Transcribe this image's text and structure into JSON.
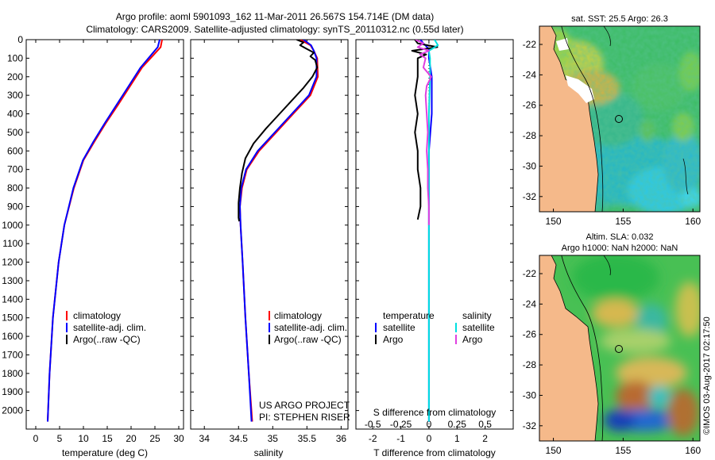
{
  "title": {
    "line1": "Argo profile: aoml 5901093_162 11-Mar-2011 26.567S 154.714E (DM data)",
    "line2": "Climatology: CARS2009. Satellite-adjusted climatology: synTS_20110312.nc (0.55d later)"
  },
  "colors": {
    "climatology": "#ff0000",
    "satellite": "#0000ff",
    "argo": "#000000",
    "argo_sal": "#e040e0",
    "sat_sal": "#00e0e0",
    "land": "#f5b98a"
  },
  "chart_data": [
    {
      "type": "line",
      "panel": "temperature",
      "xlabel": "temperature (deg C)",
      "xlim": [
        -2,
        31
      ],
      "ylim": [
        2100,
        0
      ],
      "xticks": [
        0,
        5,
        10,
        15,
        20,
        25,
        30
      ],
      "xtick_labels": [
        "0",
        "5",
        "10",
        "15",
        "20",
        "25",
        "30"
      ],
      "yticks": [
        0,
        100,
        200,
        300,
        400,
        500,
        600,
        700,
        800,
        900,
        1000,
        1100,
        1200,
        1300,
        1400,
        1500,
        1600,
        1700,
        1800,
        1900,
        2000
      ],
      "ytick_labels": [
        "0",
        "100",
        "200",
        "300",
        "400",
        "500",
        "600",
        "700",
        "800",
        "900",
        "1000",
        "1100",
        "1200",
        "1300",
        "1400",
        "1500",
        "1600",
        "1700",
        "1800",
        "1900",
        "2000"
      ],
      "legend": {
        "position": "center-left",
        "entries": [
          "climatology",
          "satellite-adj. clim.",
          "Argo(..raw -QC)"
        ]
      },
      "series": [
        {
          "name": "climatology",
          "color": "#ff0000",
          "depth": [
            0,
            40,
            80,
            150,
            250,
            350,
            450,
            550,
            650,
            800,
            1000,
            1200,
            1500,
            1800,
            2060
          ],
          "values": [
            26.5,
            26.2,
            24.8,
            22.3,
            19.8,
            17.3,
            14.7,
            12.3,
            10.0,
            8.0,
            6.0,
            4.8,
            3.6,
            2.9,
            2.5
          ]
        },
        {
          "name": "satellite-adj. clim.",
          "color": "#0000ff",
          "depth": [
            0,
            40,
            80,
            150,
            250,
            350,
            450,
            550,
            650,
            800,
            1000,
            1200,
            1500,
            1800,
            2060
          ],
          "values": [
            26.0,
            25.6,
            24.3,
            22.0,
            19.5,
            17.0,
            14.5,
            12.1,
            9.9,
            7.9,
            6.0,
            4.8,
            3.6,
            2.9,
            2.5
          ]
        }
      ]
    },
    {
      "type": "line",
      "panel": "salinity",
      "xlabel": "salinity",
      "xlim": [
        33.8,
        36.1
      ],
      "ylim": [
        2100,
        0
      ],
      "xticks": [
        34,
        34.5,
        35,
        35.5,
        36
      ],
      "xtick_labels": [
        "34",
        "34.5",
        "35",
        "35.5",
        "36"
      ],
      "legend": {
        "position": "center-right",
        "entries": [
          "climatology",
          "satellite-adj. clim.",
          "Argo(..raw -QC)"
        ]
      },
      "annotations": [
        "US ARGO PROJECT",
        "PI: STEPHEN RISER"
      ],
      "series": [
        {
          "name": "climatology",
          "color": "#ff0000",
          "depth": [
            0,
            30,
            60,
            100,
            200,
            300,
            400,
            500,
            600,
            700,
            800,
            900,
            1000,
            1200,
            1500,
            1800,
            2060
          ],
          "values": [
            35.4,
            35.55,
            35.6,
            35.65,
            35.66,
            35.55,
            35.3,
            35.05,
            34.8,
            34.62,
            34.55,
            34.52,
            34.53,
            34.56,
            34.6,
            34.65,
            34.7
          ]
        },
        {
          "name": "satellite-adj. clim.",
          "color": "#0000ff",
          "depth": [
            0,
            30,
            60,
            100,
            200,
            300,
            400,
            500,
            600,
            700,
            800,
            900,
            1000,
            1200,
            1500,
            1800,
            2060
          ],
          "values": [
            35.45,
            35.56,
            35.6,
            35.64,
            35.64,
            35.53,
            35.28,
            35.03,
            34.78,
            34.61,
            34.54,
            34.52,
            34.53,
            34.56,
            34.6,
            34.65,
            34.69
          ]
        },
        {
          "name": "Argo",
          "color": "#000000",
          "depth": [
            0,
            15,
            30,
            50,
            70,
            90,
            110,
            150,
            200,
            260,
            320,
            400,
            480,
            560,
            640,
            720,
            800,
            880,
            960,
            980
          ],
          "values": [
            35.35,
            35.45,
            35.4,
            35.5,
            35.6,
            35.55,
            35.62,
            35.65,
            35.58,
            35.45,
            35.3,
            35.1,
            34.9,
            34.72,
            34.6,
            34.55,
            34.52,
            34.5,
            34.5,
            34.51
          ]
        }
      ]
    },
    {
      "type": "line",
      "panel": "difference",
      "xlabel": "T difference from climatology",
      "xlabel_top": "S difference from climatology",
      "xlim": [
        -2.6,
        3.0
      ],
      "ylim": [
        2100,
        0
      ],
      "xticks": [
        -2,
        -1,
        0,
        1,
        2
      ],
      "xtick_labels": [
        "-2",
        "-1",
        "0",
        "1",
        "2"
      ],
      "xticks_top": [
        -0.5,
        -0.25,
        0,
        0.25,
        0.5
      ],
      "xtick_labels_top": [
        "-0.5",
        "-0.25",
        "0",
        "0.25",
        "0.5"
      ],
      "legend": {
        "position": "center",
        "headers": [
          "temperature",
          "salinity"
        ],
        "entries_left": [
          "satellite",
          "Argo"
        ],
        "entries_right": [
          "satellite",
          "Argo"
        ]
      },
      "series": [
        {
          "name": "T satellite",
          "color": "#0000ff",
          "depth": [
            0,
            20,
            50,
            100,
            200,
            300,
            400,
            500,
            600,
            700,
            800,
            900,
            1000,
            2060
          ],
          "values": [
            -0.3,
            -0.2,
            0.0,
            0.0,
            0.1,
            0.1,
            0.1,
            0.05,
            0.0,
            0.0,
            0.0,
            0.0,
            0.0,
            0.0
          ]
        },
        {
          "name": "T Argo",
          "color": "#000000",
          "depth": [
            0,
            20,
            40,
            60,
            80,
            100,
            200,
            300,
            400,
            500,
            600,
            700,
            800,
            900,
            970
          ],
          "values": [
            -0.5,
            -0.4,
            0.3,
            -0.6,
            -0.1,
            -0.4,
            -0.4,
            -0.5,
            -0.4,
            -0.5,
            -0.4,
            -0.4,
            -0.3,
            -0.3,
            -0.4
          ]
        },
        {
          "name": "S satellite",
          "color": "#00e0e0",
          "depth": [
            0,
            30,
            60,
            100,
            200,
            400,
            600,
            1000,
            1500,
            2060
          ],
          "values": [
            0.05,
            0.08,
            0.0,
            0.01,
            0.01,
            0.0,
            0.0,
            0.0,
            0.0,
            0.0
          ]
        },
        {
          "name": "S Argo",
          "color": "#e040e0",
          "depth": [
            0,
            20,
            40,
            60,
            80,
            100,
            150,
            200,
            250,
            300,
            400,
            500,
            600,
            700,
            800,
            900,
            1000
          ],
          "values": [
            -0.12,
            -0.05,
            -0.1,
            0.0,
            -0.08,
            -0.03,
            -0.05,
            0.02,
            -0.02,
            -0.03,
            -0.02,
            -0.01,
            -0.02,
            -0.01,
            -0.01,
            0.0,
            0.0
          ]
        }
      ]
    },
    {
      "type": "heatmap",
      "panel": "sst_map",
      "title": "sat. SST: 25.5 Argo: 26.3",
      "xlim": [
        149,
        160.5
      ],
      "ylim": [
        -33,
        -20.8
      ],
      "xticks": [
        150,
        155,
        160
      ],
      "xtick_labels": [
        "150",
        "155",
        "160"
      ],
      "yticks": [
        -22,
        -24,
        -26,
        -28,
        -30,
        -32
      ],
      "ytick_labels": [
        "-22",
        "-24",
        "-26",
        "-28",
        "-30",
        "-32"
      ],
      "argo_position": {
        "lon": 154.714,
        "lat": -26.567
      }
    },
    {
      "type": "heatmap",
      "panel": "sla_map",
      "title_line1": "Altim. SLA: 0.032",
      "title_line2": "Argo h1000: NaN h2000: NaN",
      "xlim": [
        149,
        160.5
      ],
      "ylim": [
        -33,
        -20.8
      ],
      "xticks": [
        150,
        155,
        160
      ],
      "xtick_labels": [
        "150",
        "155",
        "160"
      ],
      "yticks": [
        -22,
        -24,
        -26,
        -28,
        -30,
        -32
      ],
      "ytick_labels": [
        "-22",
        "-24",
        "-26",
        "-28",
        "-30",
        "-32"
      ],
      "argo_position": {
        "lon": 154.714,
        "lat": -26.567
      }
    }
  ],
  "credit": "©IMOS 03-Aug-2017 02:17:50"
}
